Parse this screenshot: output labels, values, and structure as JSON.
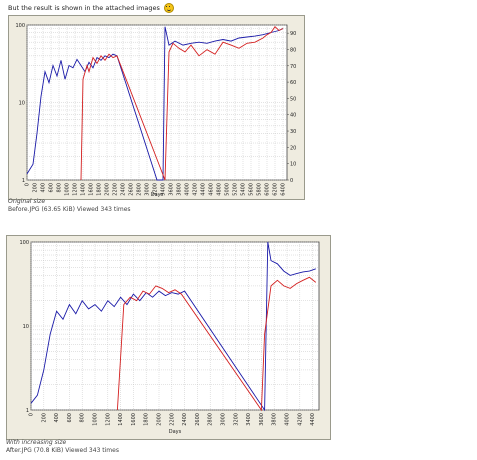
{
  "post": {
    "intro_text": "But the result is shown in the attached images",
    "smiley_icon": "smiley-icon"
  },
  "attachments": [
    {
      "caption_title": "Original size",
      "caption_info": "Before.JPG (63.65 KiB) Viewed 343 times",
      "chart": {
        "type": "line",
        "xlabel": "Days",
        "x_ticks": [
          "0",
          "200",
          "400",
          "600",
          "800",
          "1000",
          "1200",
          "1400",
          "1600",
          "1800",
          "2000",
          "2200",
          "2400",
          "2600",
          "2800",
          "3000",
          "3200",
          "3400",
          "3600",
          "3800",
          "4000",
          "4200",
          "4400",
          "4600",
          "4800",
          "5000",
          "5200",
          "5400",
          "5600",
          "5800",
          "6000",
          "6200",
          "6400"
        ],
        "left_ticks": [
          "100",
          "10",
          "1"
        ],
        "right_ticks": [
          "90",
          "80",
          "70",
          "60",
          "50",
          "40",
          "30",
          "20",
          "10",
          "0"
        ],
        "x_range": [
          0,
          6500
        ],
        "series_colors": {
          "blue": "#1a1aa8",
          "red": "#d42020"
        }
      }
    },
    {
      "caption_title": "With increasing size",
      "caption_info": "After.JPG (70.8 KiB) Viewed 343 times",
      "chart": {
        "type": "line",
        "xlabel": "Days",
        "x_ticks": [
          "0",
          "200",
          "400",
          "600",
          "800",
          "1000",
          "1200",
          "1400",
          "1600",
          "1800",
          "2000",
          "2200",
          "2400",
          "2600",
          "2800",
          "3000",
          "3200",
          "3400",
          "3600",
          "3800",
          "4000",
          "4200",
          "4400"
        ],
        "left_ticks": [
          "100",
          "10",
          "1"
        ],
        "right_ticks": [],
        "x_range": [
          0,
          4500
        ],
        "series_colors": {
          "blue": "#1a1aa8",
          "red": "#d42020"
        }
      }
    }
  ],
  "chart_data": [
    {
      "type": "line",
      "xlabel": "Days",
      "ylim_left": [
        1,
        100
      ],
      "ylim_right": [
        0,
        95
      ],
      "y_scale": "log",
      "x_range": [
        0,
        6500
      ],
      "grid": true,
      "series": [
        {
          "color": "#1a1aa8",
          "x": [
            0,
            150,
            250,
            350,
            450,
            550,
            650,
            750,
            850,
            950,
            1050,
            1150,
            1250,
            1350,
            1450,
            1550,
            1650,
            1750,
            1850,
            1950,
            2050,
            2150,
            2250,
            3250,
            3400,
            3450,
            3550,
            3700,
            3900,
            4100,
            4300,
            4500,
            4700,
            4900,
            5100,
            5300,
            5500,
            5700,
            5900,
            6100,
            6300,
            6400
          ],
          "y": [
            1.2,
            1.6,
            4,
            12,
            25,
            18,
            30,
            22,
            35,
            20,
            30,
            28,
            36,
            30,
            25,
            33,
            28,
            38,
            35,
            40,
            38,
            42,
            40,
            1,
            1,
            95,
            55,
            62,
            55,
            58,
            60,
            58,
            62,
            65,
            62,
            68,
            70,
            72,
            75,
            80,
            85,
            90
          ]
        },
        {
          "color": "#d42020",
          "x": [
            1350,
            1400,
            1500,
            1550,
            1650,
            1750,
            1850,
            1950,
            2050,
            2150,
            2250,
            3450,
            3550,
            3650,
            3800,
            3950,
            4100,
            4300,
            4500,
            4700,
            4900,
            5100,
            5300,
            5500,
            5700,
            5900,
            6000,
            6100,
            6200,
            6300,
            6400
          ],
          "y": [
            1,
            20,
            30,
            25,
            38,
            32,
            40,
            35,
            42,
            38,
            40,
            1,
            45,
            58,
            50,
            45,
            55,
            40,
            48,
            42,
            60,
            55,
            50,
            58,
            60,
            68,
            75,
            80,
            95,
            85,
            90
          ]
        }
      ]
    },
    {
      "type": "line",
      "xlabel": "Days",
      "ylim": [
        1,
        100
      ],
      "y_scale": "log",
      "x_range": [
        0,
        4500
      ],
      "grid": true,
      "series": [
        {
          "color": "#1a1aa8",
          "x": [
            0,
            100,
            200,
            300,
            400,
            500,
            600,
            700,
            800,
            900,
            1000,
            1100,
            1200,
            1300,
            1400,
            1500,
            1600,
            1700,
            1800,
            1900,
            2000,
            2100,
            2200,
            2300,
            2400,
            3650,
            3700,
            3750,
            3850,
            3950,
            4050,
            4150,
            4250,
            4350,
            4450
          ],
          "y": [
            1.2,
            1.5,
            3,
            8,
            15,
            12,
            18,
            14,
            20,
            16,
            18,
            15,
            20,
            17,
            22,
            18,
            24,
            20,
            25,
            22,
            26,
            23,
            25,
            24,
            26,
            1,
            100,
            60,
            55,
            45,
            40,
            42,
            44,
            45,
            48
          ]
        },
        {
          "color": "#d42020",
          "x": [
            1350,
            1450,
            1550,
            1650,
            1750,
            1850,
            1950,
            2050,
            2150,
            2250,
            2350,
            3600,
            3650,
            3750,
            3850,
            3950,
            4050,
            4150,
            4250,
            4350,
            4450
          ],
          "y": [
            1,
            18,
            22,
            20,
            26,
            24,
            30,
            28,
            25,
            27,
            24,
            1,
            8,
            30,
            35,
            30,
            28,
            32,
            35,
            38,
            33
          ]
        }
      ]
    }
  ]
}
